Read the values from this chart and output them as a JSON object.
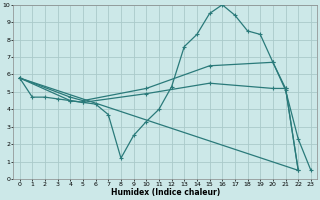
{
  "xlabel": "Humidex (Indice chaleur)",
  "bg_color": "#cce8e8",
  "grid_color": "#aacaca",
  "line_color": "#2a7a7a",
  "xlim": [
    -0.5,
    23.5
  ],
  "ylim": [
    0,
    10
  ],
  "xticks": [
    0,
    1,
    2,
    3,
    4,
    5,
    6,
    7,
    8,
    9,
    10,
    11,
    12,
    13,
    14,
    15,
    16,
    17,
    18,
    19,
    20,
    21,
    22,
    23
  ],
  "yticks": [
    0,
    1,
    2,
    3,
    4,
    5,
    6,
    7,
    8,
    9,
    10
  ],
  "series": {
    "line1": {
      "x": [
        0,
        1,
        2,
        3,
        4,
        5,
        6,
        7,
        8,
        9,
        10,
        11,
        12,
        13,
        14,
        15,
        16,
        17,
        18,
        19,
        20,
        21,
        22,
        23
      ],
      "y": [
        5.8,
        4.7,
        4.7,
        4.6,
        4.5,
        4.4,
        4.3,
        3.7,
        1.2,
        2.5,
        3.3,
        4.0,
        5.3,
        7.6,
        8.3,
        9.5,
        10.0,
        9.4,
        8.5,
        8.3,
        6.7,
        5.1,
        2.3,
        0.5
      ]
    },
    "line2": {
      "x": [
        0,
        4,
        5,
        10,
        15,
        20,
        21,
        22
      ],
      "y": [
        5.8,
        4.7,
        4.5,
        5.2,
        6.5,
        6.7,
        5.2,
        0.5
      ]
    },
    "line3": {
      "x": [
        0,
        4,
        5,
        10,
        15,
        20,
        21,
        22
      ],
      "y": [
        5.8,
        4.5,
        4.4,
        4.9,
        5.5,
        5.2,
        5.2,
        0.5
      ]
    },
    "line4": {
      "x": [
        0,
        22
      ],
      "y": [
        5.8,
        0.5
      ]
    }
  }
}
